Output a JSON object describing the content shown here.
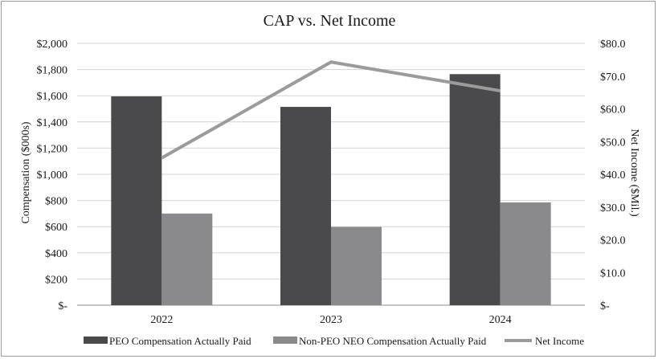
{
  "chart_data": {
    "type": "bar",
    "title": "CAP vs. Net Income",
    "categories": [
      "2022",
      "2023",
      "2024"
    ],
    "ylabel": "Compensation ($000s)",
    "y2label": "Net Income ($Mil.)",
    "ylim": [
      0,
      2000
    ],
    "y2lim": [
      0,
      80
    ],
    "y_ticks": [
      "$-",
      "$200",
      "$400",
      "$600",
      "$800",
      "$1,000",
      "$1,200",
      "$1,400",
      "$1,600",
      "$1,800",
      "$2,000"
    ],
    "y2_ticks": [
      "$-",
      "$10.0",
      "$20.0",
      "$30.0",
      "$40.0",
      "$50.0",
      "$60.0",
      "$70.0",
      "$80.0"
    ],
    "grid": true,
    "legend_position": "bottom",
    "series": [
      {
        "name": "PEO Compensation Actually Paid",
        "type": "bar",
        "axis": "left",
        "color": "#4a4a4c",
        "values": [
          1595,
          1515,
          1765
        ]
      },
      {
        "name": "Non-PEO NEO Compensation Actually Paid",
        "type": "bar",
        "axis": "left",
        "color": "#8a8a8c",
        "values": [
          700,
          598,
          785
        ]
      },
      {
        "name": "Net Income",
        "type": "line",
        "axis": "right",
        "color": "#9b9b9b",
        "values": [
          45.0,
          74.3,
          65.5
        ]
      }
    ]
  }
}
